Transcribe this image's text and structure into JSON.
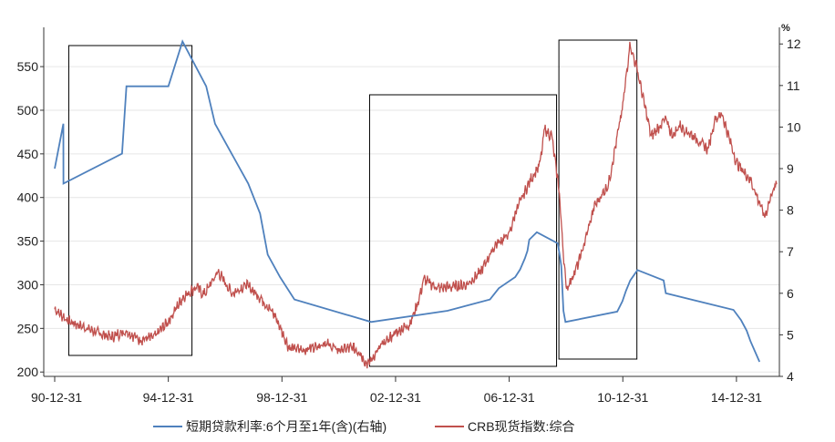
{
  "chart_data": {
    "type": "line",
    "x_ticks": [
      "90-12-31",
      "94-12-31",
      "98-12-31",
      "02-12-31",
      "06-12-31",
      "10-12-31",
      "14-12-31"
    ],
    "x_range": [
      "1990-12-31",
      "2016-05-31"
    ],
    "y_left": {
      "ticks": [
        200,
        250,
        300,
        350,
        400,
        450,
        500,
        550
      ],
      "lim": [
        195,
        595
      ]
    },
    "y_right": {
      "ticks": [
        4,
        5,
        6,
        7,
        8,
        9,
        10,
        11,
        12
      ],
      "lim": [
        4,
        12.4
      ],
      "unit_label": "%"
    },
    "series": [
      {
        "name": "短期贷款利率:6个月至1年(含)(右轴)",
        "axis": "right",
        "color": "#4f81bd",
        "points": [
          [
            "1990-12-31",
            9.0
          ],
          [
            "1991-04-21",
            10.08
          ],
          [
            "1991-04-22",
            8.64
          ],
          [
            "1993-05-15",
            9.36
          ],
          [
            "1993-07-11",
            10.98
          ],
          [
            "1995-01-01",
            10.98
          ],
          [
            "1995-07-01",
            12.06
          ],
          [
            "1996-05-01",
            10.98
          ],
          [
            "1996-08-23",
            10.08
          ],
          [
            "1997-10-23",
            8.64
          ],
          [
            "1998-03-25",
            7.92
          ],
          [
            "1998-07-01",
            6.93
          ],
          [
            "1998-12-07",
            6.39
          ],
          [
            "1999-06-10",
            5.85
          ],
          [
            "2002-02-21",
            5.31
          ],
          [
            "2004-10-29",
            5.58
          ],
          [
            "2006-04-28",
            5.85
          ],
          [
            "2006-08-19",
            6.12
          ],
          [
            "2007-03-18",
            6.39
          ],
          [
            "2007-05-19",
            6.57
          ],
          [
            "2007-07-21",
            6.84
          ],
          [
            "2007-08-22",
            7.02
          ],
          [
            "2007-09-15",
            7.29
          ],
          [
            "2007-12-21",
            7.47
          ],
          [
            "2008-09-16",
            7.2
          ],
          [
            "2008-10-09",
            6.93
          ],
          [
            "2008-10-30",
            6.66
          ],
          [
            "2008-11-27",
            5.58
          ],
          [
            "2008-12-23",
            5.31
          ],
          [
            "2010-10-20",
            5.56
          ],
          [
            "2010-12-26",
            5.81
          ],
          [
            "2011-02-09",
            6.06
          ],
          [
            "2011-04-06",
            6.31
          ],
          [
            "2011-07-07",
            6.56
          ],
          [
            "2012-06-08",
            6.31
          ],
          [
            "2012-07-06",
            6.0
          ],
          [
            "2014-11-22",
            5.6
          ],
          [
            "2015-03-01",
            5.35
          ],
          [
            "2015-05-11",
            5.1
          ],
          [
            "2015-06-28",
            4.85
          ],
          [
            "2015-08-26",
            4.6
          ],
          [
            "2015-10-24",
            4.35
          ]
        ]
      },
      {
        "name": "CRB现货指数:综合",
        "axis": "left",
        "color": "#c0504d",
        "points": [
          [
            "1990-12-31",
            272
          ],
          [
            "1991-06-30",
            258
          ],
          [
            "1991-12-31",
            252
          ],
          [
            "1992-06-30",
            245
          ],
          [
            "1992-12-31",
            240
          ],
          [
            "1993-06-30",
            247
          ],
          [
            "1993-12-31",
            237
          ],
          [
            "1994-06-30",
            240
          ],
          [
            "1994-12-31",
            258
          ],
          [
            "1995-06-30",
            285
          ],
          [
            "1995-12-31",
            298
          ],
          [
            "1996-03-31",
            288
          ],
          [
            "1996-09-30",
            315
          ],
          [
            "1997-03-31",
            290
          ],
          [
            "1997-09-30",
            300
          ],
          [
            "1998-03-31",
            285
          ],
          [
            "1998-09-30",
            265
          ],
          [
            "1999-03-31",
            228
          ],
          [
            "1999-09-30",
            225
          ],
          [
            "2000-06-30",
            233
          ],
          [
            "2000-12-31",
            225
          ],
          [
            "2001-06-30",
            228
          ],
          [
            "2001-09-30",
            222
          ],
          [
            "2001-12-31",
            208
          ],
          [
            "2002-06-30",
            230
          ],
          [
            "2002-12-31",
            245
          ],
          [
            "2003-06-30",
            255
          ],
          [
            "2003-09-30",
            275
          ],
          [
            "2003-12-31",
            306
          ],
          [
            "2004-06-30",
            296
          ],
          [
            "2004-12-31",
            298
          ],
          [
            "2005-06-30",
            300
          ],
          [
            "2005-12-31",
            315
          ],
          [
            "2006-06-30",
            345
          ],
          [
            "2006-12-31",
            358
          ],
          [
            "2007-03-31",
            385
          ],
          [
            "2007-09-30",
            420
          ],
          [
            "2008-01-31",
            438
          ],
          [
            "2008-03-31",
            478
          ],
          [
            "2008-06-30",
            470
          ],
          [
            "2008-09-30",
            410
          ],
          [
            "2008-12-31",
            295
          ],
          [
            "2009-03-31",
            310
          ],
          [
            "2009-06-30",
            330
          ],
          [
            "2009-12-31",
            390
          ],
          [
            "2010-06-30",
            415
          ],
          [
            "2010-12-31",
            505
          ],
          [
            "2011-03-31",
            575
          ],
          [
            "2011-06-30",
            548
          ],
          [
            "2011-12-31",
            470
          ],
          [
            "2012-06-30",
            490
          ],
          [
            "2012-09-30",
            470
          ],
          [
            "2012-12-31",
            482
          ],
          [
            "2013-06-30",
            470
          ],
          [
            "2013-12-31",
            455
          ],
          [
            "2014-03-31",
            490
          ],
          [
            "2014-06-30",
            495
          ],
          [
            "2014-12-31",
            440
          ],
          [
            "2015-06-30",
            420
          ],
          [
            "2015-12-31",
            378
          ],
          [
            "2016-03-31",
            405
          ],
          [
            "2016-05-31",
            415
          ]
        ]
      }
    ],
    "highlight_ranges": [
      [
        "1991-06-30",
        "1995-10-31"
      ],
      [
        "2002-01-31",
        "2008-08-31"
      ],
      [
        "2008-09-30",
        "2011-06-30"
      ]
    ],
    "legend_position": "bottom",
    "grid": true
  }
}
